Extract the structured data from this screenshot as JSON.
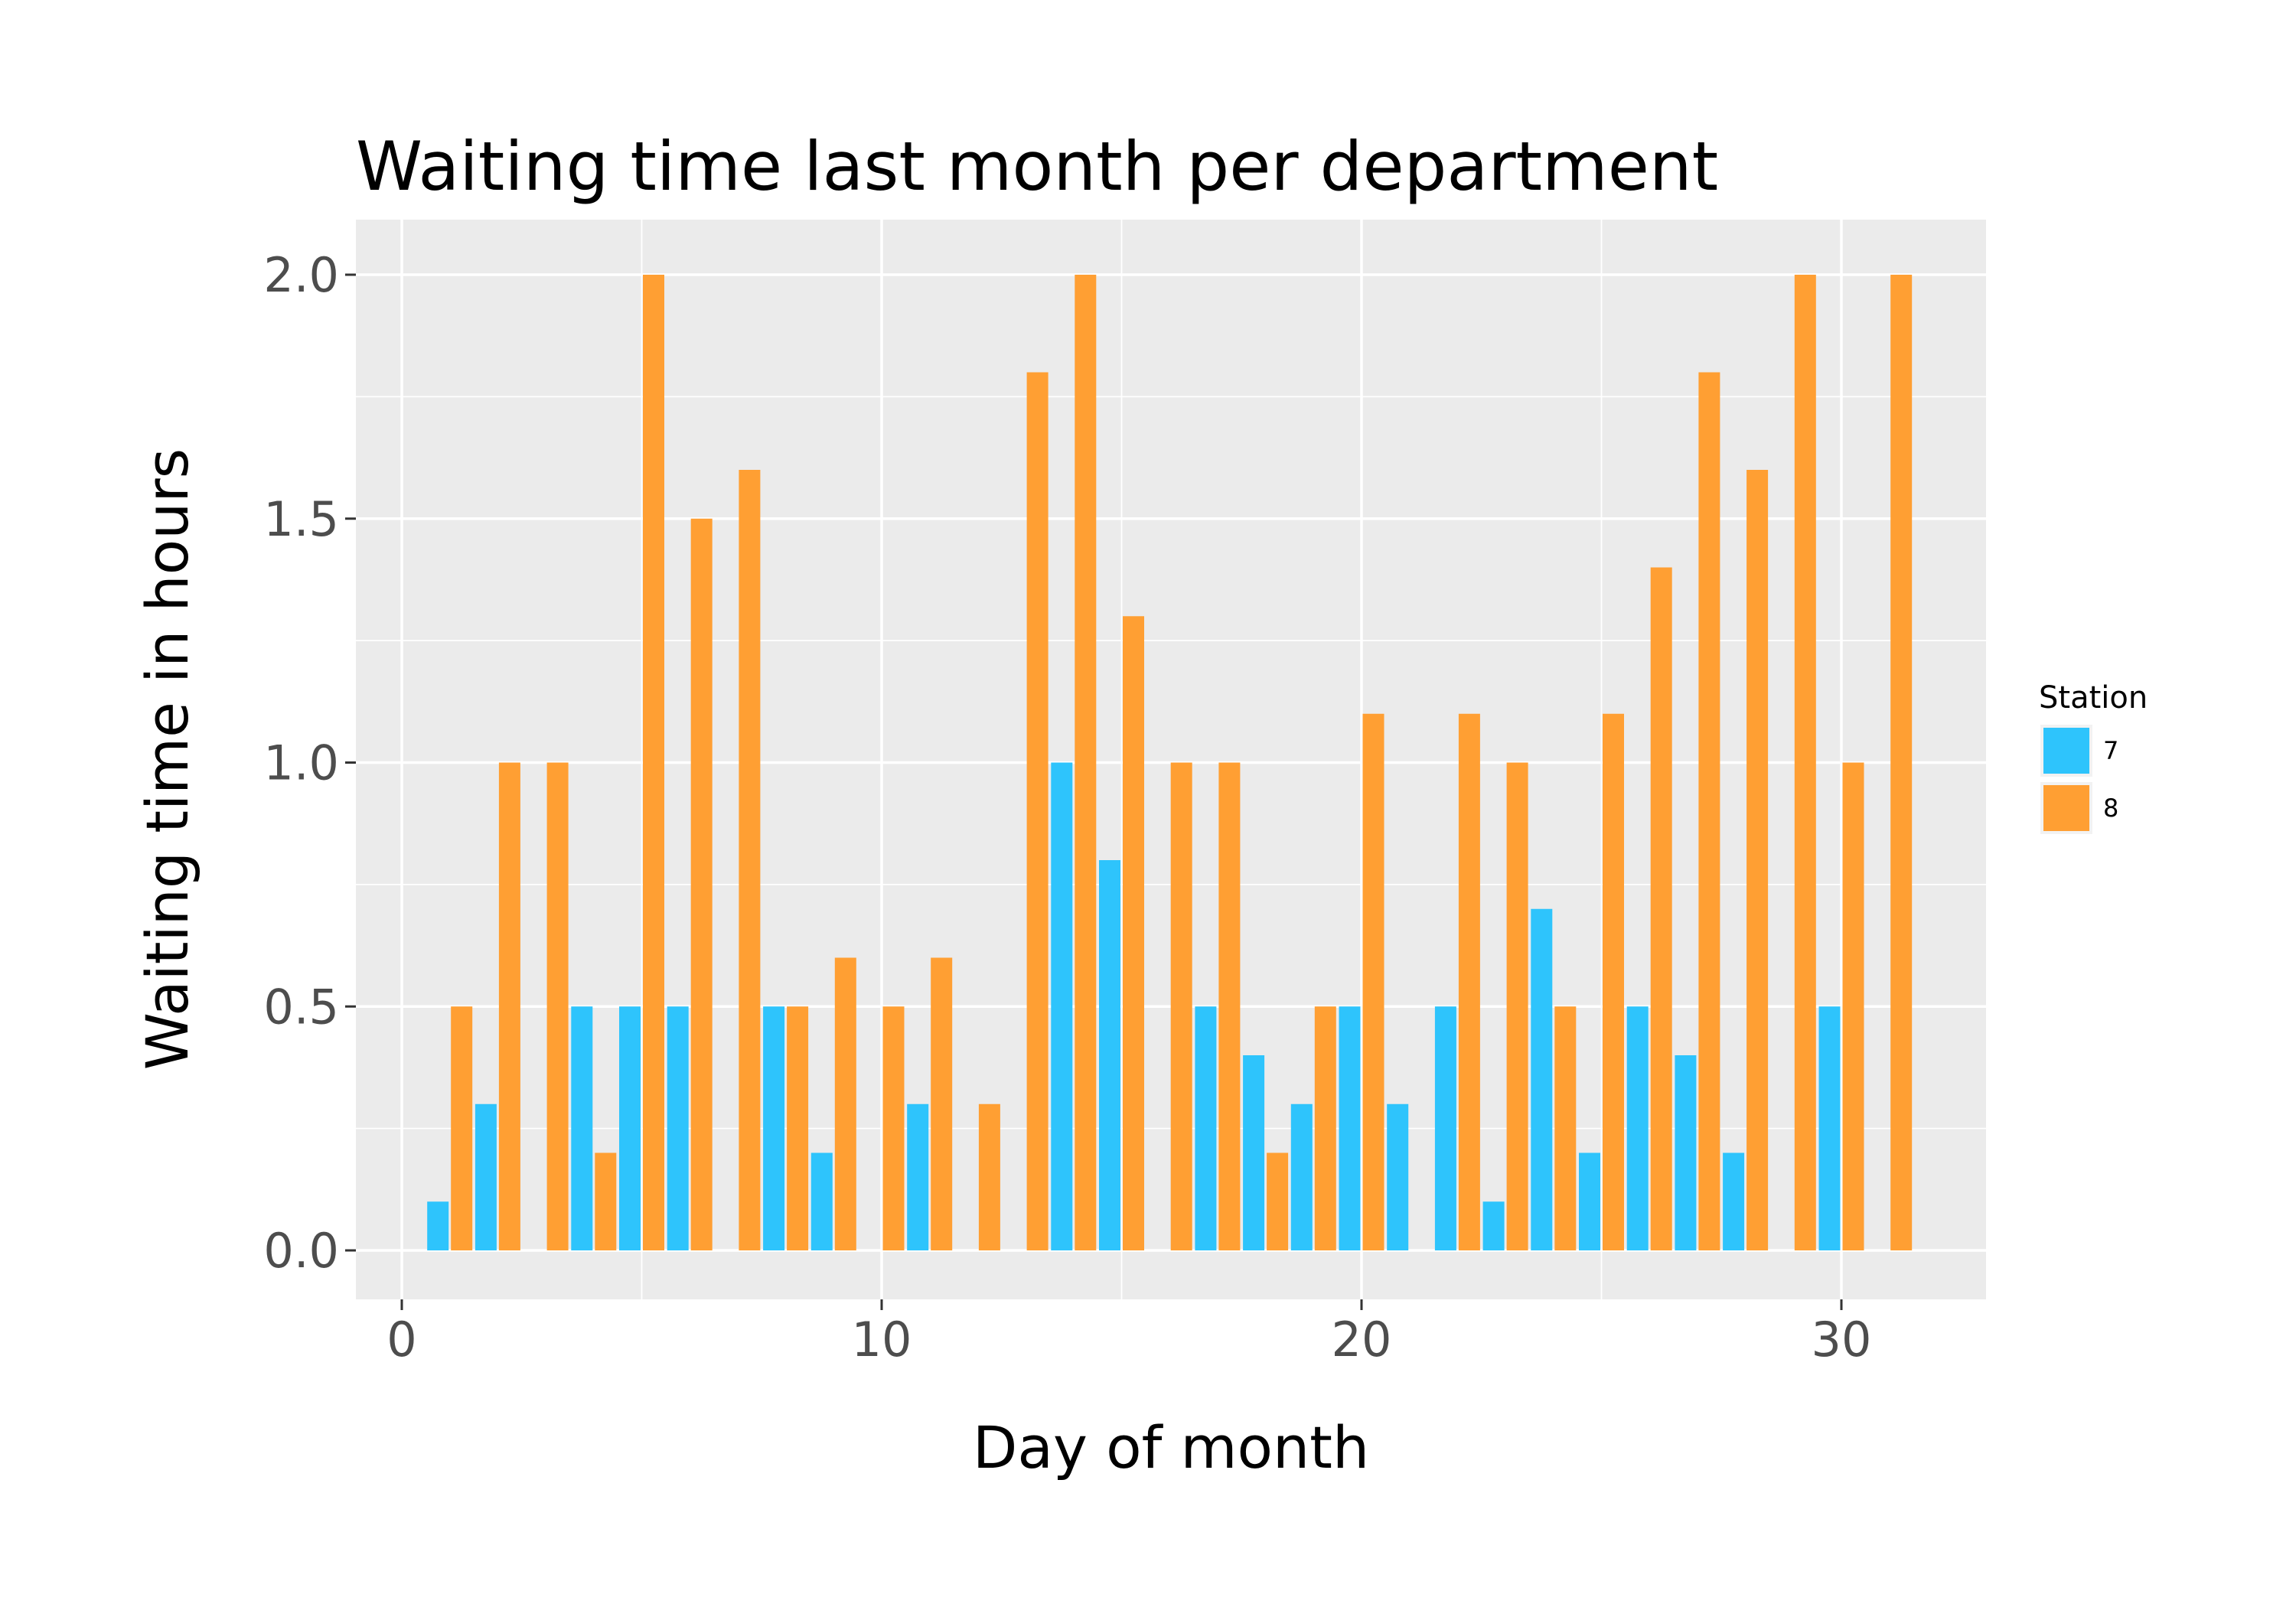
{
  "chart_data": {
    "type": "bar",
    "title": "Waiting time last month per department",
    "xlabel": "Day of month",
    "ylabel": "Waiting time in hours",
    "xlim": [
      -1,
      33
    ],
    "ylim": [
      -0.1,
      2.1
    ],
    "xticks": [
      0,
      10,
      20,
      30
    ],
    "xtick_labels": [
      "0",
      "10",
      "20",
      "30"
    ],
    "yticks": [
      0,
      0.5,
      1,
      1.5,
      2
    ],
    "ytick_labels": [
      "0.0",
      "0.5",
      "1.0",
      "1.5",
      "2.0"
    ],
    "grid": true,
    "legend": {
      "title": "Station",
      "position": "right"
    },
    "series": [
      {
        "name": "7",
        "color": "#2ec4fc",
        "x": [
          1,
          2,
          4,
          5,
          6,
          8,
          9,
          11,
          14,
          15,
          17,
          18,
          19,
          20,
          21,
          22,
          23,
          24,
          25,
          26,
          27,
          28,
          30
        ],
        "values": [
          0.1,
          0.3,
          0.5,
          0.5,
          0.5,
          0.5,
          0.2,
          0.3,
          1.0,
          0.8,
          0.5,
          0.4,
          0.3,
          0.5,
          0.3,
          0.5,
          0.1,
          0.7,
          0.2,
          0.5,
          0.4,
          0.2,
          0.5
        ]
      },
      {
        "name": "8",
        "color": "#ff9f33",
        "x": [
          1,
          2,
          3,
          4,
          5,
          6,
          7,
          8,
          9,
          10,
          11,
          12,
          13,
          14,
          15,
          16,
          17,
          18,
          19,
          20,
          22,
          23,
          24,
          25,
          26,
          27,
          28,
          29,
          30,
          31
        ],
        "values": [
          0.5,
          1.0,
          1.0,
          0.2,
          2.0,
          1.5,
          1.6,
          0.5,
          0.6,
          0.5,
          0.6,
          0.3,
          1.8,
          2.0,
          1.3,
          1.0,
          1.0,
          0.2,
          0.5,
          1.1,
          1.1,
          1.0,
          0.5,
          1.1,
          1.4,
          1.8,
          1.6,
          2.0,
          1.0,
          2.0
        ]
      }
    ]
  }
}
